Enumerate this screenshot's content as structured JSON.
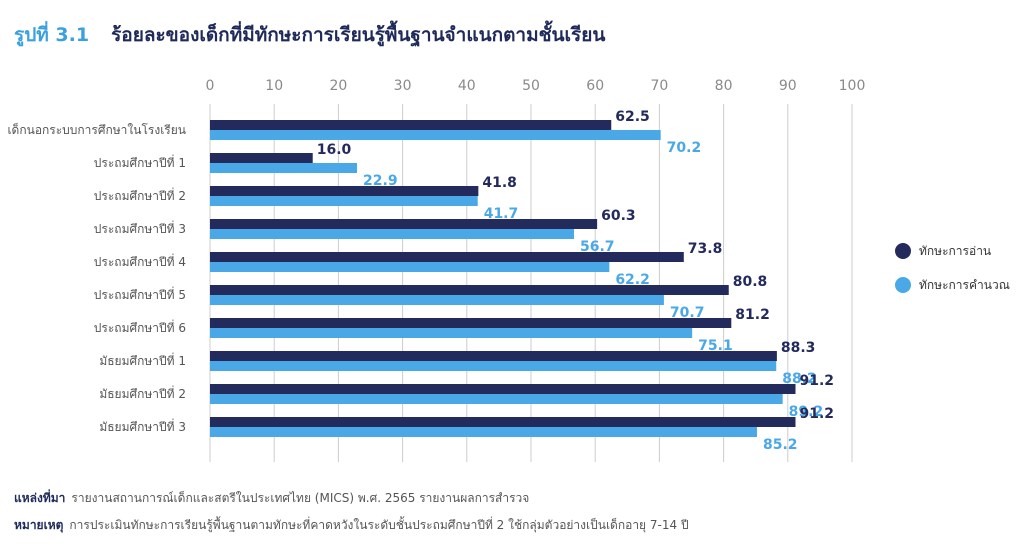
{
  "figure": {
    "number": "รูปที่ 3.1",
    "title": "ร้อยละของเด็กที่มีทักษะการเรียนรู้พื้นฐานจำแนกตามชั้นเรียน"
  },
  "footer": {
    "source_label": "แหล่งที่มา",
    "source_text": "รายงานสถานการณ์เด็กและสตรีในประเทศไทย (MICS) พ.ศ. 2565 รายงานผลการสำรวจ",
    "note_label": "หมายเหตุ",
    "note_text": "การประเมินทักษะการเรียนรู้พื้นฐานตามทักษะที่คาดหวังในระดับชั้นประถมศึกษาปีที่ 2 ใช้กลุ่มตัวอย่างเป็นเด็กอายุ 7-14 ปี"
  },
  "colors": {
    "reading": "#232a5c",
    "math": "#4aa8e6",
    "grid": "#cccccc",
    "axis_text": "#8a8a8a"
  },
  "chart_data": {
    "type": "bar",
    "orientation": "horizontal",
    "categories": [
      "เด็กนอกระบบการศึกษาในโรงเรียน",
      "ประถมศึกษาปีที่ 1",
      "ประถมศึกษาปีที่ 2",
      "ประถมศึกษาปีที่ 3",
      "ประถมศึกษาปีที่ 4",
      "ประถมศึกษาปีที่ 5",
      "ประถมศึกษาปีที่ 6",
      "มัธยมศึกษาปีที่ 1",
      "มัธยมศึกษาปีที่ 2",
      "มัธยมศึกษาปีที่ 3"
    ],
    "series": [
      {
        "name": "ทักษะการอ่าน",
        "color": "#232a5c",
        "values": [
          62.5,
          16.0,
          41.8,
          60.3,
          73.8,
          80.8,
          81.2,
          88.3,
          91.2,
          91.2
        ]
      },
      {
        "name": "ทักษะการคำนวณ",
        "color": "#4aa8e6",
        "values": [
          70.2,
          22.9,
          41.7,
          56.7,
          62.2,
          70.7,
          75.1,
          88.2,
          89.2,
          85.2
        ]
      }
    ],
    "xlim": [
      0,
      100
    ],
    "xticks": [
      0,
      10,
      20,
      30,
      40,
      50,
      60,
      70,
      80,
      90,
      100
    ],
    "grid": true,
    "legend_position": "right"
  }
}
